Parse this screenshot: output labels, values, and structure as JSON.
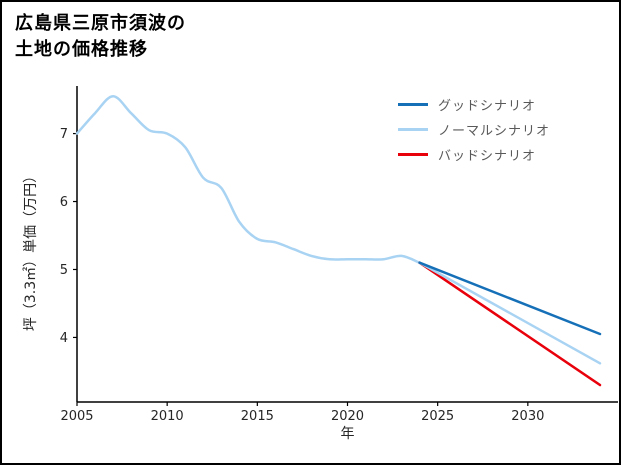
{
  "title": {
    "line1": "広島県三原市須波の",
    "line2": "土地の価格推移"
  },
  "chart_data": {
    "type": "line",
    "title": "広島県三原市須波の土地の価格推移",
    "xlabel": "年",
    "ylabel": "坪（3.3㎡）単価（万円）",
    "xlim": [
      2005,
      2035
    ],
    "ylim": [
      3.05,
      7.7
    ],
    "xticks": [
      2005,
      2010,
      2015,
      2020,
      2025,
      2030
    ],
    "yticks": [
      4,
      5,
      6,
      7
    ],
    "grid": false,
    "legend_position": "upper right",
    "axis_color": "#000000",
    "tick_label_color": "#262626",
    "series": [
      {
        "key": "historical",
        "color": "#a9d3f2",
        "width": 2.5,
        "x": [
          2005,
          2006,
          2007,
          2008,
          2009,
          2010,
          2011,
          2012,
          2013,
          2014,
          2015,
          2016,
          2017,
          2018,
          2019,
          2020,
          2021,
          2022,
          2023,
          2024
        ],
        "y": [
          7.0,
          7.3,
          7.55,
          7.3,
          7.05,
          7.0,
          6.8,
          6.35,
          6.2,
          5.7,
          5.45,
          5.4,
          5.3,
          5.2,
          5.15,
          5.15,
          5.15,
          5.15,
          5.2,
          5.1
        ]
      },
      {
        "key": "bad-scenario",
        "color": "#e8000b",
        "width": 2.5,
        "x": [
          2024,
          2034
        ],
        "y": [
          5.1,
          3.3
        ]
      },
      {
        "key": "normal-scenario",
        "color": "#a9d3f2",
        "width": 2.5,
        "x": [
          2024,
          2034
        ],
        "y": [
          5.1,
          3.62
        ]
      },
      {
        "key": "good-scenario",
        "color": "#1670b8",
        "width": 2.5,
        "x": [
          2024,
          2034
        ],
        "y": [
          5.1,
          4.05
        ]
      }
    ],
    "legend": [
      {
        "label": "グッドシナリオ",
        "color": "#1670b8"
      },
      {
        "label": "ノーマルシナリオ",
        "color": "#a9d3f2"
      },
      {
        "label": "バッドシナリオ",
        "color": "#e8000b"
      }
    ]
  }
}
